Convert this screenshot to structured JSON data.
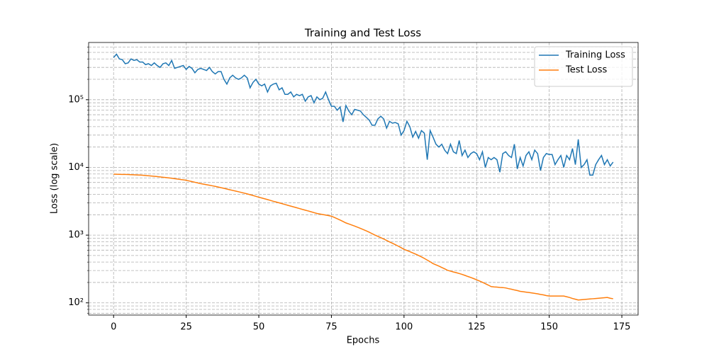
{
  "chart_data": {
    "type": "line",
    "title": "Training and Test Loss",
    "xlabel": "Epochs",
    "ylabel": "Loss (log scale)",
    "x": [
      0,
      1,
      2,
      3,
      4,
      5,
      6,
      7,
      8,
      9,
      10,
      11,
      12,
      13,
      14,
      15,
      16,
      17,
      18,
      19,
      20,
      21,
      22,
      23,
      24,
      25,
      26,
      27,
      28,
      29,
      30,
      31,
      32,
      33,
      34,
      35,
      36,
      37,
      38,
      39,
      40,
      41,
      42,
      43,
      44,
      45,
      46,
      47,
      48,
      49,
      50,
      51,
      52,
      53,
      54,
      55,
      56,
      57,
      58,
      59,
      60,
      61,
      62,
      63,
      64,
      65,
      66,
      67,
      68,
      69,
      70,
      71,
      72,
      73,
      74,
      75,
      76,
      77,
      78,
      79,
      80,
      81,
      82,
      83,
      84,
      85,
      86,
      87,
      88,
      89,
      90,
      91,
      92,
      93,
      94,
      95,
      96,
      97,
      98,
      99,
      100,
      101,
      102,
      103,
      104,
      105,
      106,
      107,
      108,
      109,
      110,
      111,
      112,
      113,
      114,
      115,
      116,
      117,
      118,
      119,
      120,
      121,
      122,
      123,
      124,
      125,
      126,
      127,
      128,
      129,
      130,
      131,
      132,
      133,
      134,
      135,
      136,
      137,
      138,
      139,
      140,
      141,
      142,
      143,
      144,
      145,
      146,
      147,
      148,
      149,
      150,
      151,
      152,
      153,
      154,
      155,
      156,
      157,
      158,
      159,
      160,
      161,
      162,
      163,
      164,
      165,
      166,
      167,
      168,
      169,
      170,
      171,
      172
    ],
    "series": [
      {
        "name": "Training Loss",
        "color": "#1f77b4",
        "values": [
          420000,
          470000,
          400000,
          390000,
          340000,
          350000,
          400000,
          380000,
          390000,
          360000,
          360000,
          330000,
          340000,
          320000,
          350000,
          320000,
          300000,
          340000,
          350000,
          320000,
          380000,
          290000,
          300000,
          310000,
          320000,
          280000,
          310000,
          290000,
          250000,
          280000,
          290000,
          280000,
          270000,
          300000,
          260000,
          240000,
          260000,
          260000,
          200000,
          170000,
          210000,
          230000,
          210000,
          200000,
          210000,
          230000,
          210000,
          150000,
          180000,
          200000,
          170000,
          160000,
          170000,
          130000,
          160000,
          170000,
          175000,
          140000,
          150000,
          120000,
          120000,
          130000,
          110000,
          120000,
          115000,
          120000,
          95000,
          110000,
          115000,
          90000,
          110000,
          100000,
          105000,
          130000,
          100000,
          80000,
          80000,
          70000,
          78000,
          47000,
          82000,
          68000,
          60000,
          72000,
          70000,
          68000,
          60000,
          55000,
          50000,
          42000,
          42000,
          52000,
          57000,
          52000,
          38000,
          48000,
          45000,
          46000,
          44000,
          30000,
          35000,
          48000,
          40000,
          28000,
          34000,
          27000,
          35000,
          32000,
          13000,
          35000,
          28000,
          22000,
          20000,
          22000,
          18000,
          16000,
          22000,
          17000,
          16000,
          25000,
          15000,
          18000,
          14000,
          16000,
          17000,
          16000,
          13000,
          17000,
          10000,
          14000,
          13000,
          14000,
          13000,
          8500,
          16000,
          17000,
          15000,
          14000,
          22000,
          9500,
          14000,
          10500,
          15000,
          17000,
          13000,
          18000,
          16000,
          9000,
          14000,
          16000,
          15500,
          15500,
          11000,
          13000,
          15000,
          10000,
          15000,
          13000,
          19000,
          11000,
          26000,
          10000,
          11000,
          13000,
          7700,
          7700,
          11000,
          13000,
          15000,
          11000,
          13000,
          10500,
          12000
        ]
      },
      {
        "name": "Test Loss",
        "color": "#ff7f0e",
        "values": [
          7943,
          7925,
          7907,
          7888,
          7870,
          7852,
          7816,
          7781,
          7745,
          7710,
          7674,
          7605,
          7536,
          7466,
          7397,
          7328,
          7246,
          7164,
          7082,
          7000,
          6918,
          6826,
          6734,
          6641,
          6549,
          6457,
          6316,
          6176,
          6035,
          5895,
          5754,
          5653,
          5552,
          5451,
          5349,
          5248,
          5134,
          5020,
          4906,
          4791,
          4677,
          4575,
          4474,
          4372,
          4271,
          4169,
          4061,
          3954,
          3846,
          3739,
          3631,
          3537,
          3443,
          3350,
          3256,
          3162,
          3080,
          2999,
          2917,
          2836,
          2754,
          2683,
          2612,
          2541,
          2470,
          2399,
          2337,
          2275,
          2213,
          2151,
          2089,
          2052,
          2015,
          1979,
          1942,
          1905,
          1827,
          1749,
          1670,
          1592,
          1514,
          1463,
          1412,
          1361,
          1310,
          1259,
          1207,
          1155,
          1104,
          1052,
          1000,
          959,
          918,
          876,
          835,
          794,
          759,
          724,
          688,
          653,
          617,
          594,
          571,
          547,
          524,
          501,
          477,
          453,
          428,
          404,
          380,
          364,
          349,
          333,
          318,
          302,
          294,
          286,
          279,
          271,
          263,
          254,
          245,
          237,
          228,
          219,
          210,
          201,
          192,
          183,
          174,
          172,
          171,
          169,
          168,
          166,
          162,
          159,
          155,
          152,
          148,
          146,
          144,
          142,
          140,
          138,
          136,
          133,
          131,
          128,
          126,
          126,
          126,
          126,
          126,
          126,
          123,
          120,
          116,
          113,
          110,
          111,
          112,
          113,
          114,
          115,
          116,
          117,
          118,
          119,
          120,
          117,
          115
        ]
      }
    ],
    "xlim": [
      -8.6,
      180.6
    ],
    "xticks": [
      0,
      25,
      50,
      75,
      100,
      125,
      150,
      175
    ],
    "ylim": [
      66,
      700000
    ],
    "ylog": true,
    "yticks": [
      {
        "value": 100,
        "label": "10²"
      },
      {
        "value": 1000,
        "label": "10³"
      },
      {
        "value": 10000,
        "label": "10⁴"
      },
      {
        "value": 100000,
        "label": "10⁵"
      }
    ],
    "yminorticks": [
      70,
      80,
      90,
      200,
      300,
      400,
      500,
      600,
      700,
      800,
      900,
      2000,
      3000,
      4000,
      5000,
      6000,
      7000,
      8000,
      9000,
      20000,
      30000,
      40000,
      50000,
      60000,
      70000,
      80000,
      90000,
      200000,
      300000,
      400000,
      500000,
      600000
    ],
    "grid": true,
    "legend": "upper right"
  }
}
